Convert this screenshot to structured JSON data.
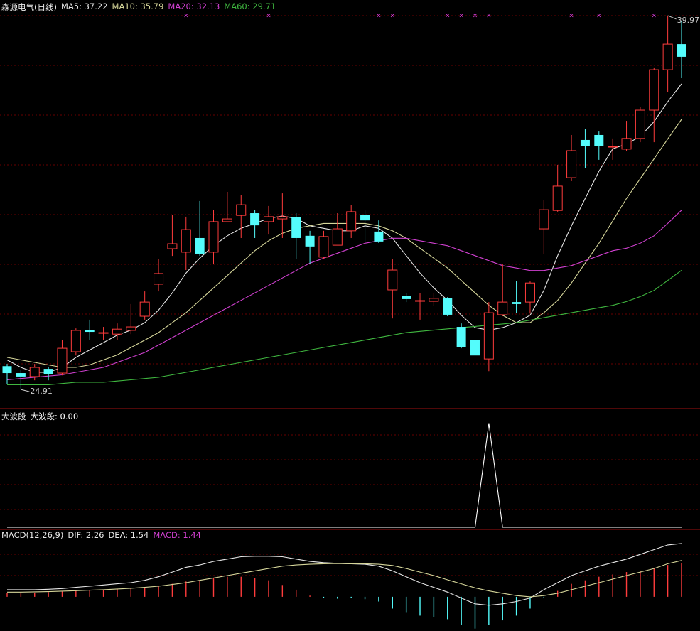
{
  "chart_data": [
    {
      "type": "candlestick",
      "title": "森源电气(日线)",
      "open": [
        25.85,
        25.57,
        25.43,
        25.74,
        25.57,
        26.43,
        27.29,
        27.2,
        27.14,
        27.29,
        27.86,
        29.15,
        30.58,
        30.44,
        31.01,
        30.44,
        31.67,
        31.92,
        32.01,
        31.67,
        31.78,
        31.84,
        31.1,
        30.24,
        30.72,
        31.3,
        31.95,
        31.27,
        28.92,
        28.69,
        28.49,
        28.46,
        28.58,
        27.43,
        26.91,
        26.14,
        27.92,
        28.43,
        28.43,
        31.38,
        32.12,
        33.44,
        34.96,
        35.16,
        34.7,
        34.59,
        35.02,
        36.16,
        37.79,
        38.82
      ],
      "close": [
        25.57,
        25.43,
        25.8,
        25.54,
        26.57,
        27.29,
        27.23,
        27.2,
        27.34,
        27.43,
        28.43,
        29.58,
        30.78,
        31.35,
        30.38,
        31.67,
        31.78,
        32.35,
        31.52,
        31.87,
        31.87,
        31.01,
        30.67,
        31.07,
        31.38,
        32.07,
        31.72,
        30.87,
        29.72,
        28.55,
        28.49,
        28.58,
        27.92,
        26.63,
        26.28,
        28.0,
        28.43,
        28.35,
        29.2,
        32.15,
        33.1,
        34.53,
        34.73,
        34.73,
        34.7,
        35.02,
        36.16,
        37.79,
        38.82,
        38.31
      ],
      "high": [
        25.94,
        25.71,
        25.94,
        25.83,
        26.91,
        27.37,
        27.72,
        27.43,
        27.57,
        28.35,
        28.86,
        30.15,
        31.95,
        31.87,
        32.5,
        32.15,
        32.87,
        32.73,
        32.15,
        32.3,
        32.81,
        32.01,
        31.3,
        31.3,
        32.01,
        32.35,
        32.12,
        31.72,
        30.15,
        28.8,
        28.8,
        28.8,
        28.63,
        27.57,
        27.0,
        28.43,
        29.95,
        29.29,
        29.26,
        32.53,
        33.96,
        35.16,
        35.39,
        35.3,
        35.02,
        35.73,
        36.3,
        37.88,
        39.97,
        39.74
      ],
      "low": [
        25.14,
        24.91,
        25.28,
        25.28,
        25.48,
        26.28,
        26.91,
        26.91,
        26.91,
        27.14,
        27.72,
        28.86,
        30.29,
        29.72,
        30.29,
        29.95,
        31.67,
        31.01,
        31.01,
        31.15,
        31.01,
        30.15,
        29.95,
        30.15,
        30.72,
        31.01,
        30.87,
        30.81,
        27.77,
        28.43,
        27.72,
        28.29,
        27.86,
        26.57,
        25.85,
        25.65,
        27.86,
        28.0,
        28.0,
        30.35,
        32.07,
        33.3,
        33.84,
        34.16,
        34.16,
        34.53,
        34.87,
        34.87,
        36.88,
        37.45
      ],
      "up_color": "#ff3c3c",
      "down_color": "#54fcfc",
      "ylim": [
        24.14,
        40.54
      ],
      "max_label": 39.97,
      "min_label": 24.91,
      "signal_symbol": "×",
      "signal_color": "#e040e0",
      "signal_indices": [
        13,
        19,
        27,
        28,
        32,
        33,
        34,
        35,
        41,
        43,
        47
      ],
      "series": [
        {
          "name": "MA5",
          "label": "MA5: 37.22",
          "color": "#e6e6e6",
          "values": [
            26.1,
            25.8,
            25.6,
            25.6,
            25.8,
            26.2,
            26.5,
            26.8,
            27.1,
            27.3,
            27.6,
            28.1,
            28.8,
            29.6,
            30.2,
            30.7,
            31.1,
            31.4,
            31.6,
            31.8,
            31.9,
            31.8,
            31.5,
            31.4,
            31.3,
            31.3,
            31.5,
            31.4,
            31.0,
            30.3,
            29.6,
            29.0,
            28.5,
            27.9,
            27.4,
            27.3,
            27.4,
            27.6,
            27.9,
            28.9,
            30.3,
            31.5,
            32.6,
            33.7,
            34.6,
            34.8,
            35.1,
            35.7,
            36.5,
            37.22
          ]
        },
        {
          "name": "MA10",
          "label": "MA10: 35.79",
          "color": "#d6d69a",
          "values": [
            26.2,
            26.1,
            26.0,
            25.9,
            25.8,
            25.8,
            25.9,
            26.1,
            26.3,
            26.6,
            26.9,
            27.2,
            27.6,
            28.0,
            28.5,
            29.0,
            29.5,
            30.0,
            30.5,
            30.9,
            31.2,
            31.4,
            31.5,
            31.6,
            31.6,
            31.6,
            31.6,
            31.5,
            31.3,
            31.0,
            30.6,
            30.2,
            29.8,
            29.3,
            28.8,
            28.3,
            27.9,
            27.6,
            27.6,
            28.0,
            28.5,
            29.2,
            30.0,
            30.8,
            31.7,
            32.6,
            33.4,
            34.2,
            35.0,
            35.79
          ]
        },
        {
          "name": "MA20",
          "label": "MA20: 32.13",
          "color": "#d040d0",
          "values": [
            25.3,
            25.35,
            25.4,
            25.45,
            25.5,
            25.6,
            25.7,
            25.8,
            26.0,
            26.2,
            26.4,
            26.7,
            27.0,
            27.3,
            27.6,
            27.9,
            28.2,
            28.5,
            28.8,
            29.1,
            29.4,
            29.7,
            30.0,
            30.2,
            30.4,
            30.6,
            30.8,
            30.9,
            31.0,
            31.0,
            30.9,
            30.8,
            30.7,
            30.5,
            30.3,
            30.1,
            29.9,
            29.8,
            29.7,
            29.7,
            29.8,
            29.9,
            30.1,
            30.3,
            30.5,
            30.6,
            30.8,
            31.1,
            31.6,
            32.13
          ]
        },
        {
          "name": "MA60",
          "label": "MA60: 29.71",
          "color": "#40b840",
          "values": [
            25.1,
            25.1,
            25.1,
            25.1,
            25.15,
            25.2,
            25.2,
            25.2,
            25.25,
            25.3,
            25.35,
            25.4,
            25.5,
            25.6,
            25.7,
            25.8,
            25.9,
            26.0,
            26.1,
            26.2,
            26.3,
            26.4,
            26.5,
            26.6,
            26.7,
            26.8,
            26.9,
            27.0,
            27.1,
            27.2,
            27.25,
            27.3,
            27.35,
            27.4,
            27.45,
            27.5,
            27.55,
            27.6,
            27.7,
            27.8,
            27.9,
            28.0,
            28.1,
            28.2,
            28.3,
            28.45,
            28.65,
            28.9,
            29.3,
            29.71
          ]
        }
      ]
    },
    {
      "type": "line",
      "title": "大波段",
      "ylim": [
        0,
        1.12
      ],
      "series": [
        {
          "name": "大波段",
          "label": "大波段: 0.00",
          "color": "#ffffff",
          "values": [
            0,
            0,
            0,
            0,
            0,
            0,
            0,
            0,
            0,
            0,
            0,
            0,
            0,
            0,
            0,
            0,
            0,
            0,
            0,
            0,
            0,
            0,
            0,
            0,
            0,
            0,
            0,
            0,
            0,
            0,
            0,
            0,
            0,
            0,
            0,
            1,
            0,
            0,
            0,
            0,
            0,
            0,
            0,
            0,
            0,
            0,
            0,
            0,
            0,
            0
          ]
        }
      ]
    },
    {
      "type": "macd",
      "title": "MACD(12,26,9)",
      "ylim": [
        -1.45,
        2.83
      ],
      "up_color": "#ff3c3c",
      "down_color": "#54fcfc",
      "series": [
        {
          "name": "DIF",
          "label": "DIF: 2.26",
          "color": "#e6e6e6",
          "kind": "line",
          "values": [
            0.3,
            0.3,
            0.3,
            0.32,
            0.35,
            0.4,
            0.45,
            0.5,
            0.55,
            0.6,
            0.7,
            0.85,
            1.05,
            1.25,
            1.35,
            1.5,
            1.6,
            1.7,
            1.72,
            1.72,
            1.7,
            1.6,
            1.5,
            1.45,
            1.42,
            1.4,
            1.38,
            1.3,
            1.1,
            0.85,
            0.6,
            0.4,
            0.2,
            -0.05,
            -0.3,
            -0.36,
            -0.3,
            -0.2,
            -0.05,
            0.3,
            0.6,
            0.9,
            1.1,
            1.3,
            1.45,
            1.6,
            1.8,
            2.0,
            2.2,
            2.26
          ]
        },
        {
          "name": "DEA",
          "label": "DEA: 1.54",
          "color": "#d6d69a",
          "kind": "line",
          "values": [
            0.2,
            0.2,
            0.21,
            0.22,
            0.24,
            0.26,
            0.28,
            0.3,
            0.33,
            0.36,
            0.4,
            0.45,
            0.52,
            0.6,
            0.7,
            0.8,
            0.9,
            1.0,
            1.1,
            1.2,
            1.3,
            1.35,
            1.38,
            1.4,
            1.41,
            1.4,
            1.4,
            1.38,
            1.33,
            1.2,
            1.05,
            0.9,
            0.72,
            0.55,
            0.38,
            0.25,
            0.15,
            0.05,
            0.0,
            0.05,
            0.15,
            0.3,
            0.45,
            0.6,
            0.75,
            0.9,
            1.05,
            1.2,
            1.4,
            1.54
          ]
        },
        {
          "name": "MACD",
          "label": "MACD: 1.44",
          "color": "#d040d0",
          "kind": "bar",
          "values": [
            0.15,
            0.15,
            0.18,
            0.2,
            0.22,
            0.25,
            0.28,
            0.3,
            0.32,
            0.35,
            0.4,
            0.45,
            0.55,
            0.65,
            0.7,
            0.8,
            0.85,
            0.85,
            0.8,
            0.7,
            0.5,
            0.3,
            0.05,
            -0.05,
            -0.08,
            -0.05,
            -0.1,
            -0.2,
            -0.5,
            -0.65,
            -0.8,
            -0.85,
            -0.95,
            -1.2,
            -1.35,
            -1.2,
            -1.0,
            -0.8,
            -0.5,
            -0.05,
            0.25,
            0.55,
            0.7,
            0.85,
            0.95,
            1.05,
            1.1,
            1.2,
            1.35,
            1.44
          ]
        }
      ]
    }
  ]
}
